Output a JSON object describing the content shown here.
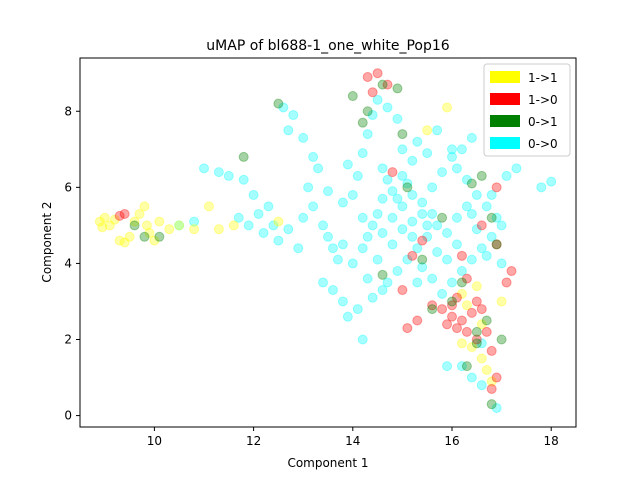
{
  "chart_data": {
    "type": "scatter",
    "title": "uMAP of bl688-1_one_white_Pop16",
    "xlabel": "Component 1",
    "ylabel": "Component 2",
    "xlim": [
      8.5,
      18.5
    ],
    "ylim": [
      -0.3,
      9.4
    ],
    "xticks": [
      10,
      12,
      14,
      16,
      18
    ],
    "yticks": [
      0,
      2,
      4,
      6,
      8
    ],
    "grid": false,
    "legend_position": "top-right",
    "point_alpha": 0.35,
    "series": [
      {
        "name": "1->1",
        "color": "#ffff00",
        "points": [
          [
            8.9,
            5.1
          ],
          [
            9.0,
            5.2
          ],
          [
            9.1,
            5.0
          ],
          [
            8.95,
            4.95
          ],
          [
            9.2,
            5.15
          ],
          [
            9.3,
            4.6
          ],
          [
            9.4,
            4.55
          ],
          [
            9.5,
            4.7
          ],
          [
            9.6,
            5.1
          ],
          [
            9.7,
            5.3
          ],
          [
            9.8,
            5.5
          ],
          [
            9.85,
            5.0
          ],
          [
            9.9,
            4.8
          ],
          [
            10.0,
            4.6
          ],
          [
            10.1,
            5.1
          ],
          [
            10.3,
            4.9
          ],
          [
            10.5,
            5.0
          ],
          [
            10.8,
            4.9
          ],
          [
            11.1,
            5.5
          ],
          [
            11.3,
            4.9
          ],
          [
            11.6,
            5.0
          ],
          [
            12.5,
            5.1
          ],
          [
            15.5,
            7.5
          ],
          [
            15.9,
            8.1
          ],
          [
            16.2,
            3.2
          ],
          [
            16.3,
            2.9
          ],
          [
            16.5,
            3.4
          ],
          [
            16.4,
            1.8
          ],
          [
            16.6,
            1.5
          ],
          [
            16.7,
            1.2
          ],
          [
            16.8,
            0.9
          ],
          [
            16.6,
            2.4
          ],
          [
            16.2,
            1.9
          ],
          [
            17.0,
            3.0
          ]
        ]
      },
      {
        "name": "1->0",
        "color": "#ff0000",
        "points": [
          [
            9.4,
            5.3
          ],
          [
            9.3,
            5.25
          ],
          [
            14.3,
            8.9
          ],
          [
            14.5,
            9.0
          ],
          [
            14.7,
            8.7
          ],
          [
            14.4,
            8.5
          ],
          [
            14.8,
            6.4
          ],
          [
            15.0,
            3.3
          ],
          [
            15.1,
            2.3
          ],
          [
            15.3,
            2.5
          ],
          [
            15.6,
            2.9
          ],
          [
            15.8,
            2.8
          ],
          [
            16.0,
            2.6
          ],
          [
            16.1,
            2.3
          ],
          [
            16.2,
            2.5
          ],
          [
            16.3,
            2.2
          ],
          [
            16.4,
            2.7
          ],
          [
            16.5,
            2.0
          ],
          [
            16.6,
            2.8
          ],
          [
            16.7,
            2.2
          ],
          [
            16.8,
            1.7
          ],
          [
            16.9,
            1.0
          ],
          [
            16.8,
            0.7
          ],
          [
            16.5,
            3.0
          ],
          [
            16.3,
            3.6
          ],
          [
            16.1,
            3.1
          ],
          [
            15.9,
            2.4
          ],
          [
            16.0,
            2.9
          ],
          [
            16.9,
            4.5
          ],
          [
            17.2,
            3.8
          ],
          [
            17.1,
            3.5
          ],
          [
            16.6,
            5.0
          ],
          [
            16.9,
            6.0
          ],
          [
            15.2,
            4.2
          ],
          [
            15.4,
            4.6
          ],
          [
            16.2,
            4.2
          ]
        ]
      },
      {
        "name": "0->1",
        "color": "#008000",
        "points": [
          [
            9.6,
            5.0
          ],
          [
            9.8,
            4.7
          ],
          [
            10.1,
            4.7
          ],
          [
            11.8,
            6.8
          ],
          [
            12.5,
            8.2
          ],
          [
            14.0,
            8.4
          ],
          [
            14.2,
            7.7
          ],
          [
            14.3,
            8.0
          ],
          [
            14.6,
            8.7
          ],
          [
            14.9,
            8.6
          ],
          [
            15.0,
            7.4
          ],
          [
            15.1,
            6.0
          ],
          [
            14.6,
            3.7
          ],
          [
            15.4,
            4.1
          ],
          [
            15.6,
            2.8
          ],
          [
            16.0,
            3.0
          ],
          [
            16.2,
            3.5
          ],
          [
            16.4,
            6.1
          ],
          [
            16.6,
            6.3
          ],
          [
            16.8,
            5.2
          ],
          [
            16.9,
            4.5
          ],
          [
            16.7,
            2.5
          ],
          [
            16.5,
            2.2
          ],
          [
            16.3,
            1.3
          ],
          [
            16.8,
            0.3
          ],
          [
            16.5,
            1.9
          ],
          [
            17.0,
            2.0
          ],
          [
            15.8,
            5.2
          ]
        ]
      },
      {
        "name": "0->0",
        "color": "#00ffff",
        "points": [
          [
            10.5,
            5.0
          ],
          [
            10.8,
            5.1
          ],
          [
            11.0,
            6.5
          ],
          [
            11.3,
            6.4
          ],
          [
            11.5,
            6.3
          ],
          [
            11.7,
            5.2
          ],
          [
            11.9,
            5.0
          ],
          [
            12.1,
            5.3
          ],
          [
            12.3,
            5.5
          ],
          [
            12.2,
            4.8
          ],
          [
            12.5,
            4.6
          ],
          [
            12.7,
            4.9
          ],
          [
            12.9,
            4.4
          ],
          [
            12.6,
            8.1
          ],
          [
            12.8,
            7.9
          ],
          [
            12.7,
            7.5
          ],
          [
            13.0,
            7.3
          ],
          [
            13.2,
            6.8
          ],
          [
            13.3,
            6.5
          ],
          [
            13.0,
            5.2
          ],
          [
            13.2,
            5.5
          ],
          [
            13.4,
            5.0
          ],
          [
            13.5,
            4.7
          ],
          [
            13.6,
            4.4
          ],
          [
            13.7,
            4.1
          ],
          [
            13.4,
            3.5
          ],
          [
            13.6,
            3.3
          ],
          [
            13.8,
            3.0
          ],
          [
            13.9,
            2.6
          ],
          [
            14.1,
            2.8
          ],
          [
            14.2,
            2.0
          ],
          [
            14.4,
            3.1
          ],
          [
            14.0,
            5.8
          ],
          [
            14.1,
            6.3
          ],
          [
            14.2,
            6.9
          ],
          [
            14.3,
            7.4
          ],
          [
            14.4,
            7.9
          ],
          [
            14.5,
            8.3
          ],
          [
            14.7,
            8.1
          ],
          [
            14.9,
            7.8
          ],
          [
            15.0,
            7.0
          ],
          [
            15.2,
            6.7
          ],
          [
            15.1,
            6.1
          ],
          [
            14.8,
            5.9
          ],
          [
            14.6,
            5.7
          ],
          [
            14.5,
            5.3
          ],
          [
            14.4,
            5.0
          ],
          [
            14.3,
            4.7
          ],
          [
            14.2,
            4.4
          ],
          [
            14.6,
            4.8
          ],
          [
            14.8,
            5.2
          ],
          [
            15.0,
            5.5
          ],
          [
            15.2,
            5.8
          ],
          [
            15.4,
            5.6
          ],
          [
            15.6,
            5.3
          ],
          [
            15.7,
            5.0
          ],
          [
            15.5,
            4.7
          ],
          [
            15.3,
            4.4
          ],
          [
            15.1,
            4.1
          ],
          [
            14.9,
            3.8
          ],
          [
            14.7,
            3.5
          ],
          [
            14.5,
            4.1
          ],
          [
            14.8,
            4.5
          ],
          [
            15.0,
            4.9
          ],
          [
            15.2,
            5.1
          ],
          [
            15.4,
            5.3
          ],
          [
            15.6,
            6.0
          ],
          [
            15.8,
            6.4
          ],
          [
            16.0,
            6.8
          ],
          [
            16.2,
            7.0
          ],
          [
            16.4,
            7.3
          ],
          [
            16.1,
            6.5
          ],
          [
            16.3,
            6.2
          ],
          [
            16.5,
            5.8
          ],
          [
            16.7,
            5.5
          ],
          [
            16.9,
            5.2
          ],
          [
            17.0,
            5.0
          ],
          [
            16.8,
            4.7
          ],
          [
            16.6,
            4.4
          ],
          [
            16.4,
            4.1
          ],
          [
            16.2,
            3.8
          ],
          [
            16.0,
            3.5
          ],
          [
            15.8,
            3.2
          ],
          [
            15.6,
            3.6
          ],
          [
            15.4,
            3.9
          ],
          [
            15.9,
            4.8
          ],
          [
            16.1,
            5.2
          ],
          [
            16.3,
            5.5
          ],
          [
            16.5,
            4.9
          ],
          [
            16.7,
            4.2
          ],
          [
            17.0,
            4.0
          ],
          [
            17.1,
            6.3
          ],
          [
            17.3,
            6.5
          ],
          [
            17.8,
            6.0
          ],
          [
            18.0,
            6.15
          ],
          [
            16.2,
            1.3
          ],
          [
            16.4,
            1.0
          ],
          [
            16.6,
            0.8
          ],
          [
            16.9,
            0.2
          ],
          [
            15.9,
            1.3
          ],
          [
            16.6,
            1.9
          ],
          [
            14.6,
            6.5
          ],
          [
            15.3,
            7.2
          ],
          [
            14.2,
            5.2
          ],
          [
            13.8,
            5.6
          ],
          [
            13.5,
            5.9
          ],
          [
            13.1,
            6.0
          ],
          [
            15.5,
            6.9
          ],
          [
            15.7,
            7.5
          ],
          [
            16.0,
            7.0
          ],
          [
            15.3,
            3.5
          ],
          [
            15.7,
            4.3
          ],
          [
            15.9,
            4.1
          ],
          [
            16.1,
            4.5
          ],
          [
            14.0,
            4.0
          ],
          [
            13.8,
            4.5
          ],
          [
            15.0,
            6.3
          ],
          [
            15.5,
            5.0
          ],
          [
            14.9,
            5.7
          ],
          [
            14.3,
            3.6
          ],
          [
            14.6,
            3.3
          ],
          [
            12.4,
            5.0
          ],
          [
            12.0,
            5.8
          ],
          [
            11.8,
            6.2
          ],
          [
            16.8,
            5.8
          ],
          [
            16.4,
            5.3
          ],
          [
            15.2,
            4.7
          ],
          [
            14.7,
            6.2
          ],
          [
            13.9,
            6.6
          ]
        ]
      }
    ]
  }
}
